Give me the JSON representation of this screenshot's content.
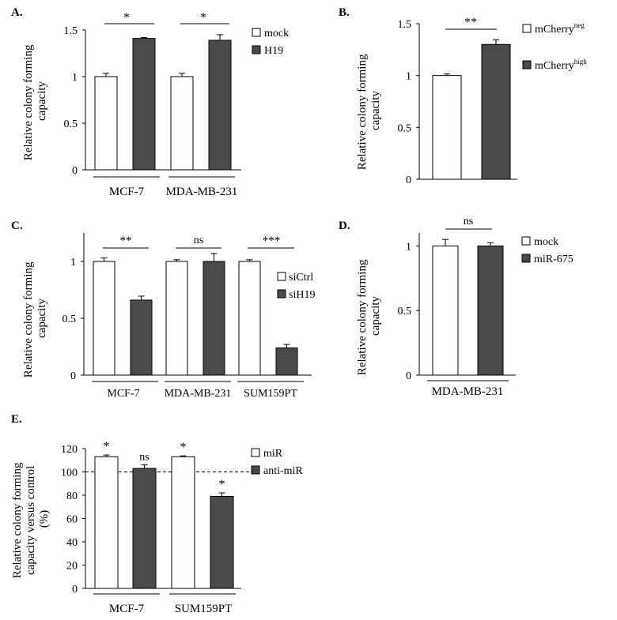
{
  "chart_data": [
    {
      "panel_label": "A.",
      "type": "bar",
      "categories": [
        "MCF-7",
        "MDA-MB-231"
      ],
      "series": [
        {
          "name": "mock",
          "values": [
            1.0,
            1.0
          ],
          "errors": [
            0.035,
            0.035
          ]
        },
        {
          "name": "H19",
          "values": [
            1.41,
            1.39
          ],
          "errors": [
            0.01,
            0.06
          ]
        }
      ],
      "ylabel": "Relative colony forming capacity",
      "ylabel_lines": [
        "Relative colony forming",
        "capacity"
      ],
      "ylim": [
        0,
        1.5
      ],
      "yticks": [
        0,
        0.5,
        1,
        1.5
      ],
      "ytick_labels": [
        "0",
        "0.5",
        "1",
        "1.5"
      ],
      "significance": [
        "*",
        "*"
      ],
      "legend_position": "top-right"
    },
    {
      "panel_label": "B.",
      "type": "bar",
      "categories": [
        ""
      ],
      "series": [
        {
          "name": "mCherry",
          "sup": "neg",
          "values": [
            1.0
          ],
          "errors": [
            0.015
          ]
        },
        {
          "name": "mCherry",
          "sup": "high",
          "values": [
            1.3
          ],
          "errors": [
            0.045
          ]
        }
      ],
      "ylabel": "Relative colony forming capacity",
      "ylabel_lines": [
        "Relative colony forming",
        "capacity"
      ],
      "ylim": [
        0,
        1.5
      ],
      "yticks": [
        0,
        0.5,
        1,
        1.5
      ],
      "ytick_labels": [
        "0",
        "0.5",
        "1",
        "1.5"
      ],
      "significance": [
        "**"
      ],
      "legend_position": "top-right"
    },
    {
      "panel_label": "C.",
      "type": "bar",
      "categories": [
        "MCF-7",
        "MDA-MB-231",
        "SUM159PT"
      ],
      "series": [
        {
          "name": "siCtrl",
          "values": [
            1.0,
            1.0,
            1.0
          ],
          "errors": [
            0.03,
            0.015,
            0.015
          ]
        },
        {
          "name": "siH19",
          "values": [
            0.66,
            1.0,
            0.24
          ],
          "errors": [
            0.035,
            0.07,
            0.03
          ]
        }
      ],
      "ylabel": "Relative colony forming capacity",
      "ylabel_lines": [
        "Relative colony forming",
        "capacity"
      ],
      "ylim": [
        0,
        1.25
      ],
      "yticks": [
        0,
        0.5,
        1
      ],
      "ytick_labels": [
        "0",
        "0.5",
        "1"
      ],
      "significance": [
        "**",
        "ns",
        "***"
      ],
      "legend_position": "right"
    },
    {
      "panel_label": "D.",
      "type": "bar",
      "categories": [
        "MDA-MB-231"
      ],
      "series": [
        {
          "name": "mock",
          "values": [
            1.0
          ],
          "errors": [
            0.05
          ]
        },
        {
          "name": "miR-675",
          "values": [
            1.0
          ],
          "errors": [
            0.025
          ]
        }
      ],
      "ylabel": "Relative colony forming capacity",
      "ylabel_lines": [
        "Relative colony forming",
        "capacity"
      ],
      "ylim": [
        0,
        1.1
      ],
      "yticks": [
        0,
        0.5,
        1
      ],
      "ytick_labels": [
        "0",
        "0.5",
        "1"
      ],
      "significance": [
        "ns"
      ],
      "legend_position": "top-right"
    },
    {
      "panel_label": "E.",
      "type": "bar",
      "categories": [
        "MCF-7",
        "SUM159PT"
      ],
      "series": [
        {
          "name": "miR",
          "values": [
            113,
            113
          ],
          "errors": [
            1.5,
            0.8
          ]
        },
        {
          "name": "anti-miR",
          "values": [
            103,
            79
          ],
          "errors": [
            3,
            3
          ]
        }
      ],
      "ylabel": "Relative colony forming capacity versus control (%)",
      "ylabel_lines": [
        "Relative colony forming",
        "capacity versus control",
        "(%)"
      ],
      "ylim": [
        0,
        120
      ],
      "yticks": [
        0,
        20,
        40,
        60,
        80,
        100,
        120
      ],
      "ytick_labels": [
        "0",
        "20",
        "40",
        "60",
        "80",
        "100",
        "120"
      ],
      "bar_annotations": [
        [
          "*",
          "ns"
        ],
        [
          "*",
          "*"
        ]
      ],
      "reference_line": 100,
      "legend_position": "top-right"
    }
  ],
  "colors": {
    "control": "#ffffff",
    "treatment": "#4a4a4a",
    "outline": "#000000"
  }
}
